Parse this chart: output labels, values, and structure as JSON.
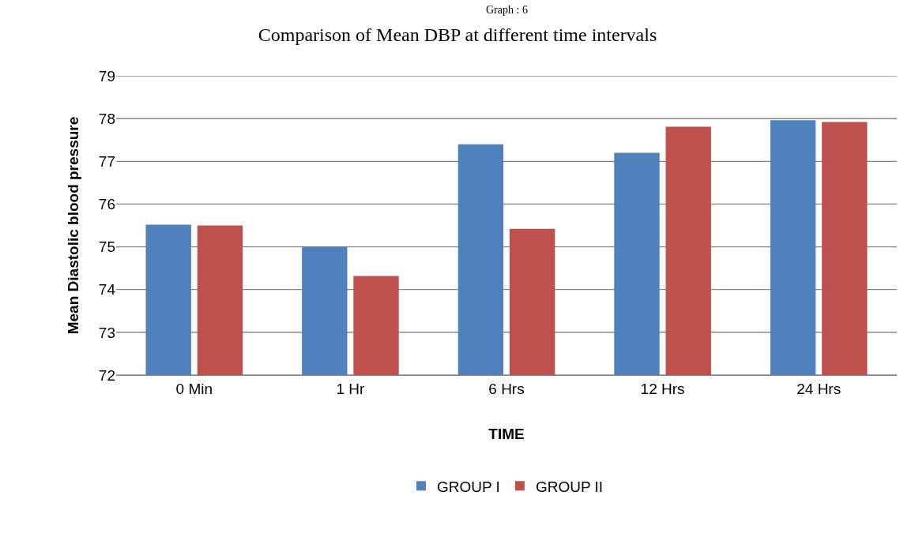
{
  "chart_data": {
    "type": "bar",
    "title": "Comparison of Mean DBP at different time intervals",
    "annotations": [
      "Graph : 6"
    ],
    "xlabel": "TIME",
    "ylabel": "Mean Diastolic blood pressure",
    "categories": [
      "0 Min",
      "1 Hr",
      "6 Hrs",
      "12 Hrs",
      "24 Hrs"
    ],
    "series": [
      {
        "name": "GROUP I",
        "color": "#4f81bd",
        "values": [
          75.52,
          75.0,
          77.4,
          77.2,
          77.96
        ]
      },
      {
        "name": "GROUP II",
        "color": "#c0504d",
        "values": [
          75.5,
          74.32,
          75.42,
          77.81,
          77.92
        ]
      }
    ],
    "ylim": [
      72,
      79
    ],
    "yticks": [
      72,
      73,
      74,
      75,
      76,
      77,
      78,
      79
    ],
    "grid": "y",
    "legend": "bottom"
  }
}
